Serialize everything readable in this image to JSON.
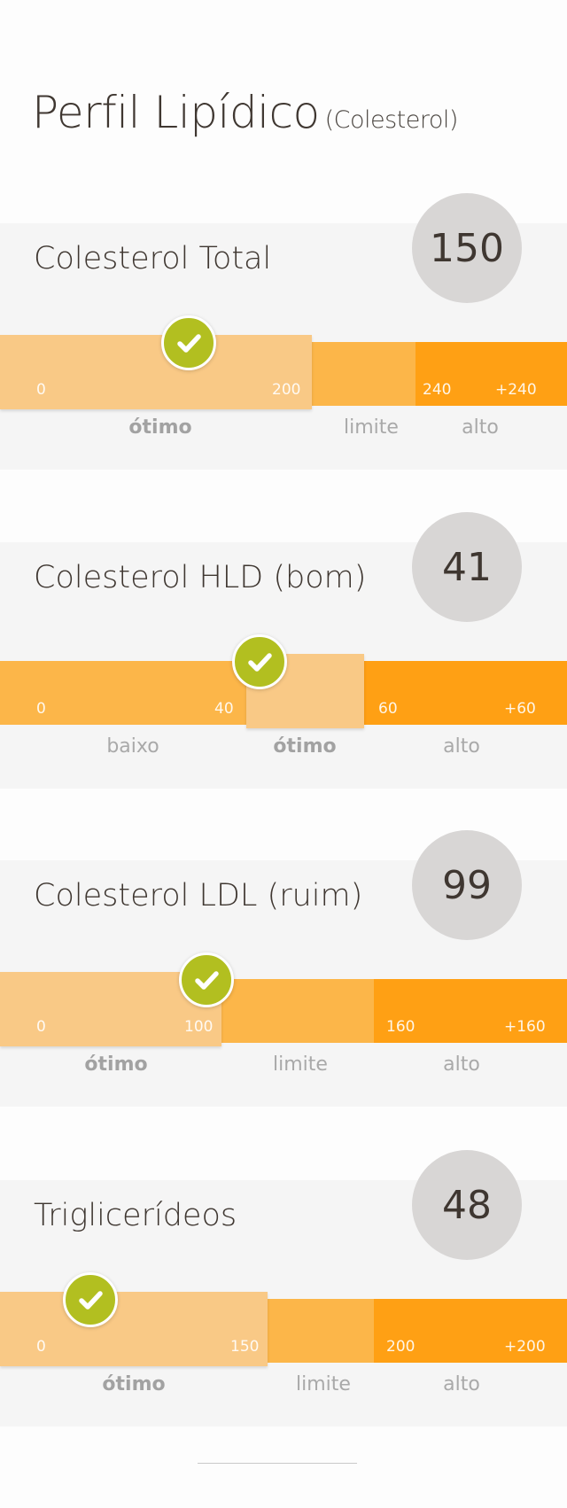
{
  "page": {
    "title": "Perfil Lipídico",
    "subtitle": "(Colesterol)"
  },
  "colors": {
    "optimal": "#f9c986",
    "limit": "#fcb649",
    "high": "#ffa014",
    "check": "#b2bf20",
    "badge": "#d8d6d5"
  },
  "cards": [
    {
      "title": "Colesterol Total",
      "value": "150",
      "ticks": [
        "0",
        "200",
        "240",
        "+240"
      ],
      "zones": [
        "ótimo",
        "limite",
        "alto"
      ]
    },
    {
      "title": "Colesterol HLD (bom)",
      "value": "41",
      "ticks": [
        "0",
        "40",
        "60",
        "+60"
      ],
      "zones": [
        "baixo",
        "ótimo",
        "alto"
      ]
    },
    {
      "title": "Colesterol LDL (ruim)",
      "value": "99",
      "ticks": [
        "0",
        "100",
        "160",
        "+160"
      ],
      "zones": [
        "ótimo",
        "limite",
        "alto"
      ]
    },
    {
      "title": "Triglicerídeos",
      "value": "48",
      "ticks": [
        "0",
        "150",
        "200",
        "+200"
      ],
      "zones": [
        "ótimo",
        "limite",
        "alto"
      ]
    }
  ]
}
